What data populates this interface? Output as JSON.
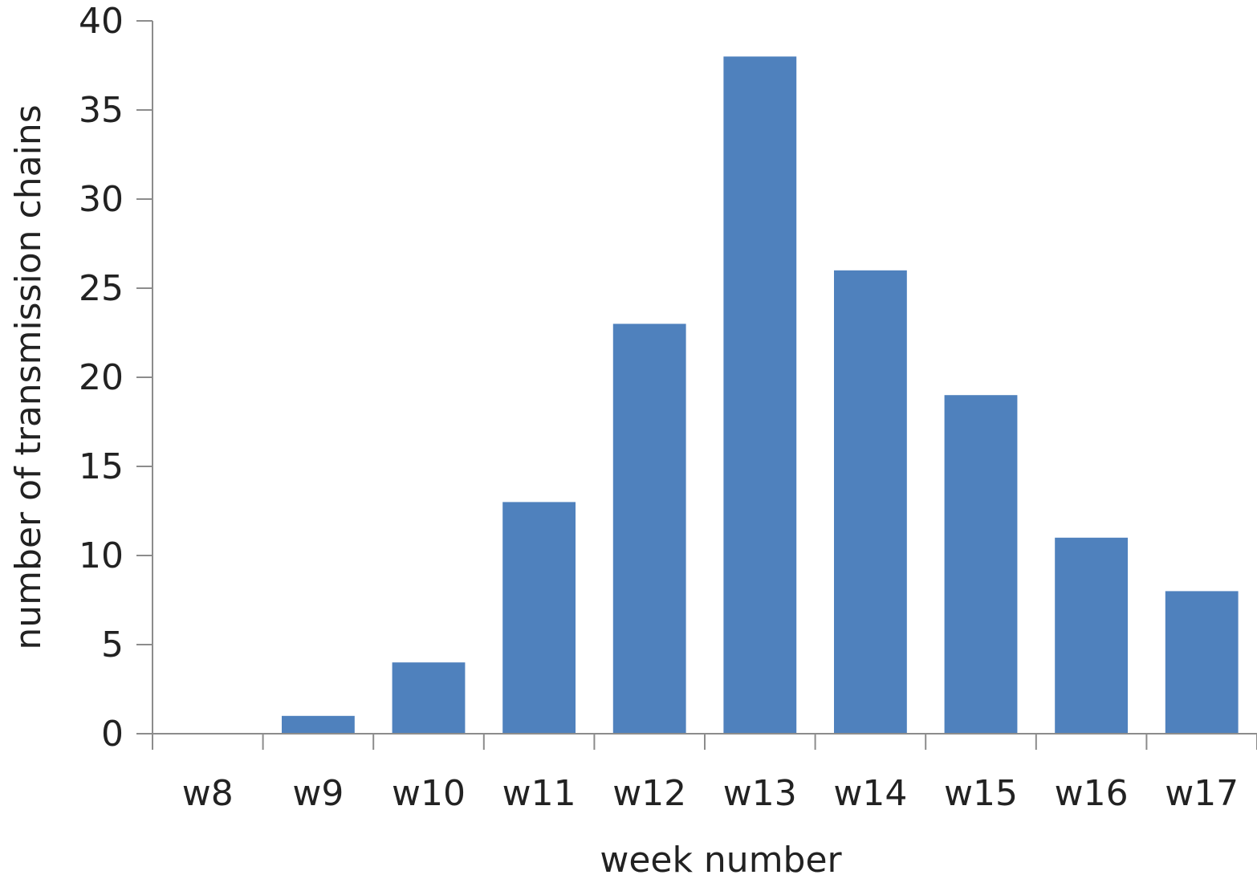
{
  "colors": {
    "bar": "#4f81bd",
    "axis": "#8c8c8c",
    "text": "#222222"
  },
  "chart_data": {
    "type": "bar",
    "categories": [
      "w8",
      "w9",
      "w10",
      "w11",
      "w12",
      "w13",
      "w14",
      "w15",
      "w16",
      "w17"
    ],
    "values": [
      0,
      1,
      4,
      13,
      23,
      38,
      26,
      19,
      11,
      8
    ],
    "title": "",
    "xlabel": "week number",
    "ylabel": "number of transmission chains",
    "ylim": [
      0,
      40
    ],
    "yticks": [
      "0",
      "5",
      "10",
      "15",
      "20",
      "25",
      "30",
      "35",
      "40"
    ],
    "grid": false,
    "legend": "none"
  }
}
